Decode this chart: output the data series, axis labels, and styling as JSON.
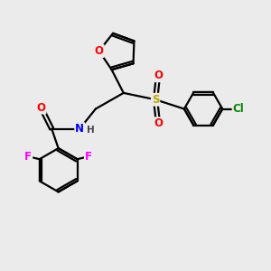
{
  "background_color": "#ebebeb",
  "line_color": "#000000",
  "line_width": 1.6,
  "atom_colors": {
    "O": "#ff0000",
    "N": "#0000ff",
    "F": "#ff00ff",
    "Cl": "#008800",
    "S": "#bbaa00",
    "C": "#000000",
    "H": "#444444"
  },
  "font_size": 8.5,
  "bold": true
}
